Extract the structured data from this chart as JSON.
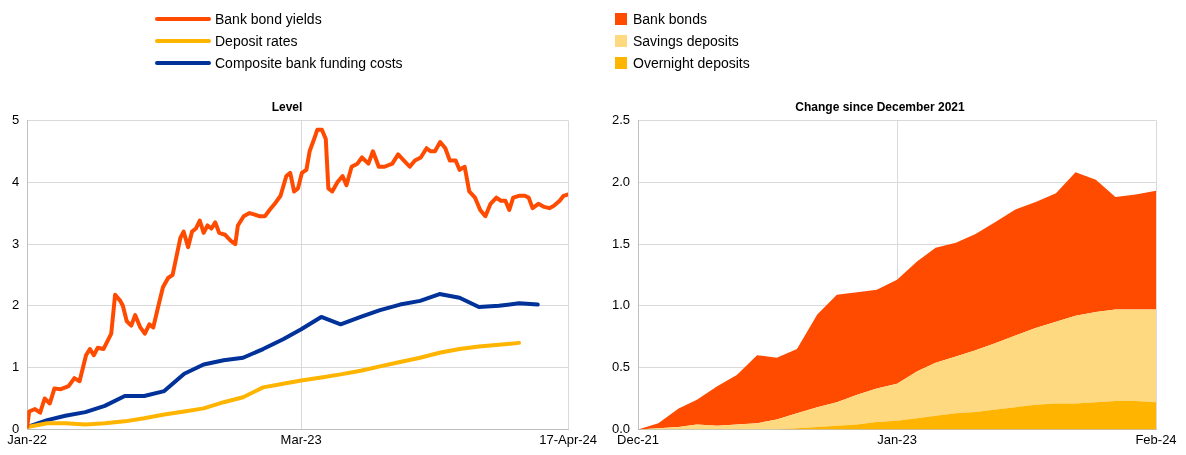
{
  "chart_data": [
    {
      "type": "line",
      "title": "Level",
      "legend": "top left",
      "grid": true,
      "xlim": [
        "2022-01-01",
        "2024-04-17"
      ],
      "xticks": [
        {
          "value": "2022-01-01",
          "label": "Jan-22"
        },
        {
          "value": "2023-03-01",
          "label": "Mar-23"
        },
        {
          "value": "2024-04-17",
          "label": "17-Apr-24"
        }
      ],
      "ylim": [
        0,
        5
      ],
      "yticks": [
        0,
        1,
        2,
        3,
        4,
        5
      ],
      "series": [
        {
          "name": "Bank bond yields",
          "color": "#ff4b00",
          "x": [
            "2022-01-01",
            "2022-01-04",
            "2022-01-13",
            "2022-01-21",
            "2022-01-28",
            "2022-02-05",
            "2022-02-12",
            "2022-02-22",
            "2022-03-06",
            "2022-03-15",
            "2022-03-23",
            "2022-04-02",
            "2022-04-08",
            "2022-04-14",
            "2022-04-20",
            "2022-04-29",
            "2022-05-11",
            "2022-05-17",
            "2022-05-25",
            "2022-05-29",
            "2022-06-04",
            "2022-06-11",
            "2022-06-17",
            "2022-06-25",
            "2022-07-02",
            "2022-07-09",
            "2022-07-15",
            "2022-07-23",
            "2022-07-30",
            "2022-08-07",
            "2022-08-14",
            "2022-08-20",
            "2022-08-26",
            "2022-08-31",
            "2022-09-07",
            "2022-09-13",
            "2022-09-19",
            "2022-09-25",
            "2022-10-01",
            "2022-10-07",
            "2022-10-13",
            "2022-10-19",
            "2022-10-25",
            "2022-11-03",
            "2022-11-12",
            "2022-11-19",
            "2022-11-23",
            "2022-12-02",
            "2022-12-11",
            "2022-12-18",
            "2022-12-26",
            "2023-01-04",
            "2023-01-11",
            "2023-01-19",
            "2023-01-28",
            "2023-02-06",
            "2023-02-12",
            "2023-02-18",
            "2023-02-24",
            "2023-03-02",
            "2023-03-09",
            "2023-03-14",
            "2023-03-21",
            "2023-03-26",
            "2023-04-02",
            "2023-04-08",
            "2023-04-12",
            "2023-04-18",
            "2023-04-26",
            "2023-05-04",
            "2023-05-10",
            "2023-05-18",
            "2023-05-27",
            "2023-06-03",
            "2023-06-13",
            "2023-06-20",
            "2023-06-29",
            "2023-07-08",
            "2023-07-20",
            "2023-07-29",
            "2023-08-07",
            "2023-08-16",
            "2023-08-24",
            "2023-09-02",
            "2023-09-11",
            "2023-09-17",
            "2023-09-24",
            "2023-10-02",
            "2023-10-10",
            "2023-10-17",
            "2023-10-26",
            "2023-11-01",
            "2023-11-09",
            "2023-11-16",
            "2023-11-25",
            "2023-12-03",
            "2023-12-11",
            "2023-12-19",
            "2023-12-28",
            "2024-01-04",
            "2024-01-11",
            "2024-01-17",
            "2024-01-23",
            "2024-02-01",
            "2024-02-10",
            "2024-02-16",
            "2024-02-22",
            "2024-03-02",
            "2024-03-11",
            "2024-03-19",
            "2024-03-26",
            "2024-04-04",
            "2024-04-10",
            "2024-04-16"
          ],
          "values": [
            0.05,
            0.29,
            0.33,
            0.27,
            0.5,
            0.42,
            0.66,
            0.65,
            0.7,
            0.83,
            0.78,
            1.2,
            1.3,
            1.2,
            1.32,
            1.3,
            1.55,
            2.18,
            2.08,
            2.0,
            1.75,
            1.68,
            1.85,
            1.65,
            1.55,
            1.7,
            1.65,
            2.0,
            2.3,
            2.45,
            2.5,
            2.8,
            3.1,
            3.2,
            2.95,
            3.2,
            3.25,
            3.38,
            3.18,
            3.3,
            3.25,
            3.35,
            3.18,
            3.15,
            3.05,
            3.0,
            3.3,
            3.45,
            3.5,
            3.48,
            3.45,
            3.45,
            3.55,
            3.65,
            3.78,
            4.1,
            4.15,
            3.85,
            3.9,
            4.15,
            4.2,
            4.5,
            4.7,
            4.85,
            4.85,
            4.7,
            3.9,
            3.85,
            4.0,
            4.1,
            3.95,
            4.25,
            4.3,
            4.4,
            4.3,
            4.5,
            4.25,
            4.25,
            4.3,
            4.45,
            4.35,
            4.25,
            4.35,
            4.4,
            4.55,
            4.5,
            4.5,
            4.65,
            4.55,
            4.35,
            4.35,
            4.2,
            4.25,
            3.85,
            3.75,
            3.55,
            3.45,
            3.65,
            3.75,
            3.7,
            3.7,
            3.55,
            3.75,
            3.78,
            3.78,
            3.75,
            3.58,
            3.65,
            3.6,
            3.58,
            3.62,
            3.7,
            3.78,
            3.8
          ]
        },
        {
          "name": "Deposit rates",
          "color": "#ffb400",
          "x": [
            "2022-01",
            "2022-02",
            "2022-03",
            "2022-04",
            "2022-05",
            "2022-06",
            "2022-07",
            "2022-08",
            "2022-09",
            "2022-10",
            "2022-11",
            "2022-12",
            "2023-01",
            "2023-02",
            "2023-03",
            "2023-04",
            "2023-05",
            "2023-06",
            "2023-07",
            "2023-08",
            "2023-09",
            "2023-10",
            "2023-11",
            "2023-12",
            "2024-01",
            "2024-02"
          ],
          "values": [
            0.04,
            0.1,
            0.1,
            0.08,
            0.1,
            0.13,
            0.18,
            0.24,
            0.29,
            0.34,
            0.44,
            0.52,
            0.68,
            0.74,
            0.79,
            0.84,
            0.89,
            0.95,
            1.02,
            1.09,
            1.16,
            1.24,
            1.3,
            1.34,
            1.37,
            1.4
          ]
        },
        {
          "name": "Composite bank funding costs",
          "color": "#003299",
          "x": [
            "2022-01",
            "2022-02",
            "2022-03",
            "2022-04",
            "2022-05",
            "2022-06",
            "2022-07",
            "2022-08",
            "2022-09",
            "2022-10",
            "2022-11",
            "2022-12",
            "2023-01",
            "2023-02",
            "2023-03",
            "2023-04",
            "2023-05",
            "2023-06",
            "2023-07",
            "2023-08",
            "2023-09",
            "2023-10",
            "2023-11",
            "2023-12",
            "2024-01",
            "2024-02",
            "2024-03"
          ],
          "values": [
            0.04,
            0.15,
            0.22,
            0.28,
            0.38,
            0.54,
            0.54,
            0.62,
            0.9,
            1.05,
            1.12,
            1.16,
            1.3,
            1.46,
            1.62,
            1.82,
            1.7,
            1.82,
            1.93,
            2.02,
            2.08,
            2.19,
            2.13,
            1.98,
            2.0,
            2.04,
            2.02
          ]
        }
      ]
    },
    {
      "type": "area",
      "title": "Change since December 2021",
      "legend": "top left",
      "grid": true,
      "stacked": true,
      "x": [
        "2021-12",
        "2022-01",
        "2022-02",
        "2022-03",
        "2022-04",
        "2022-05",
        "2022-06",
        "2022-07",
        "2022-08",
        "2022-09",
        "2022-10",
        "2022-11",
        "2022-12",
        "2023-01",
        "2023-02",
        "2023-03",
        "2023-04",
        "2023-05",
        "2023-06",
        "2023-07",
        "2023-08",
        "2023-09",
        "2023-10",
        "2023-11",
        "2023-12",
        "2024-01",
        "2024-02"
      ],
      "xlim": [
        "2021-12",
        "2024-02"
      ],
      "xticks": [
        {
          "value": "2021-12",
          "label": "Dec-21"
        },
        {
          "value": "2023-01",
          "label": "Jan-23"
        },
        {
          "value": "2024-02",
          "label": "Feb-24"
        }
      ],
      "ylim": [
        0,
        2.5
      ],
      "yticks": [
        {
          "value": 0,
          "label": "0.0"
        },
        {
          "value": 0.5,
          "label": "0.5"
        },
        {
          "value": 1,
          "label": "1.0"
        },
        {
          "value": 1.5,
          "label": "1.5"
        },
        {
          "value": 2,
          "label": "2.0"
        },
        {
          "value": 2.5,
          "label": "2.5"
        }
      ],
      "series": [
        {
          "name": "Overnight deposits",
          "color": "#ffb400",
          "values": [
            0,
            0,
            0,
            0,
            0,
            0,
            0,
            0,
            0.01,
            0.02,
            0.03,
            0.04,
            0.06,
            0.07,
            0.09,
            0.11,
            0.13,
            0.14,
            0.16,
            0.18,
            0.2,
            0.21,
            0.21,
            0.22,
            0.23,
            0.23,
            0.22
          ]
        },
        {
          "name": "Savings deposits",
          "color": "#ffd980",
          "values": [
            0,
            0.01,
            0.02,
            0.04,
            0.03,
            0.04,
            0.05,
            0.08,
            0.12,
            0.16,
            0.19,
            0.24,
            0.27,
            0.3,
            0.38,
            0.43,
            0.46,
            0.5,
            0.54,
            0.58,
            0.62,
            0.66,
            0.71,
            0.73,
            0.74,
            0.74,
            0.75
          ]
        },
        {
          "name": "Bank bonds",
          "color": "#ff4b00",
          "values": [
            0,
            0.04,
            0.15,
            0.2,
            0.32,
            0.4,
            0.55,
            0.5,
            0.52,
            0.75,
            0.87,
            0.83,
            0.8,
            0.84,
            0.89,
            0.93,
            0.92,
            0.94,
            0.98,
            1.02,
            1.02,
            1.04,
            1.16,
            1.07,
            0.91,
            0.93,
            0.96
          ]
        }
      ]
    }
  ]
}
